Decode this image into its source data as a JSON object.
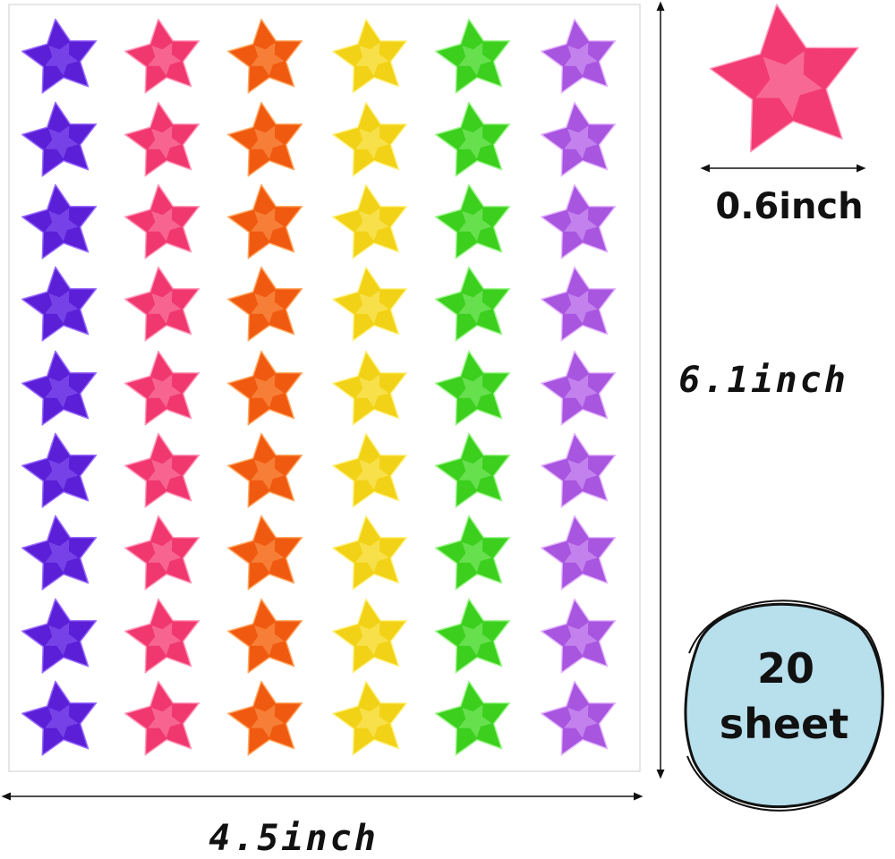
{
  "star_size": {
    "label": "0.6inch"
  },
  "sheet_height": {
    "label": "6.1inch"
  },
  "sheet_width": {
    "label": "4.5inch"
  },
  "badge": {
    "count": "20",
    "unit": "sheet"
  }
}
